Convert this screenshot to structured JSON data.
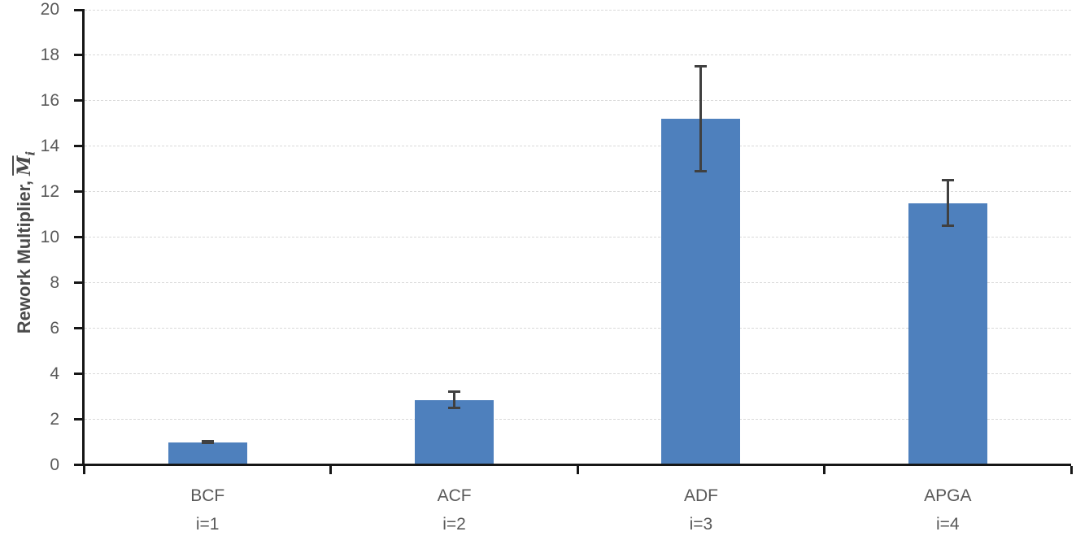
{
  "chart_data": {
    "type": "bar",
    "title": "",
    "categories": [
      "BCF",
      "ACF",
      "ADF",
      "APGA"
    ],
    "category_sublabels": [
      "i=1",
      "i=2",
      "i=3",
      "i=4"
    ],
    "values": [
      1.0,
      2.85,
      15.2,
      11.5
    ],
    "error_plus": [
      0.05,
      0.36,
      2.3,
      1.0
    ],
    "error_minus": [
      0.05,
      0.36,
      2.3,
      1.0
    ],
    "ylabel": {
      "text": "Rework Multiplier, ",
      "symbol": "M",
      "symbol_decoration": "overline",
      "subscript": "i"
    },
    "xlabel": "",
    "ylim": [
      0,
      20
    ],
    "yticks": [
      0,
      2,
      4,
      6,
      8,
      10,
      12,
      14,
      16,
      18,
      20
    ],
    "grid": {
      "horizontal": true,
      "vertical": false,
      "style": "dashed"
    },
    "legend_position": "none",
    "colors": {
      "background": "#ffffff",
      "bar_fill": "#4e80bd",
      "error_bar": "#404040",
      "axis_line": "#161616",
      "gridline": "#d9d9d9",
      "tick_label": "#595959",
      "axis_title": "#4a4a4a"
    }
  }
}
